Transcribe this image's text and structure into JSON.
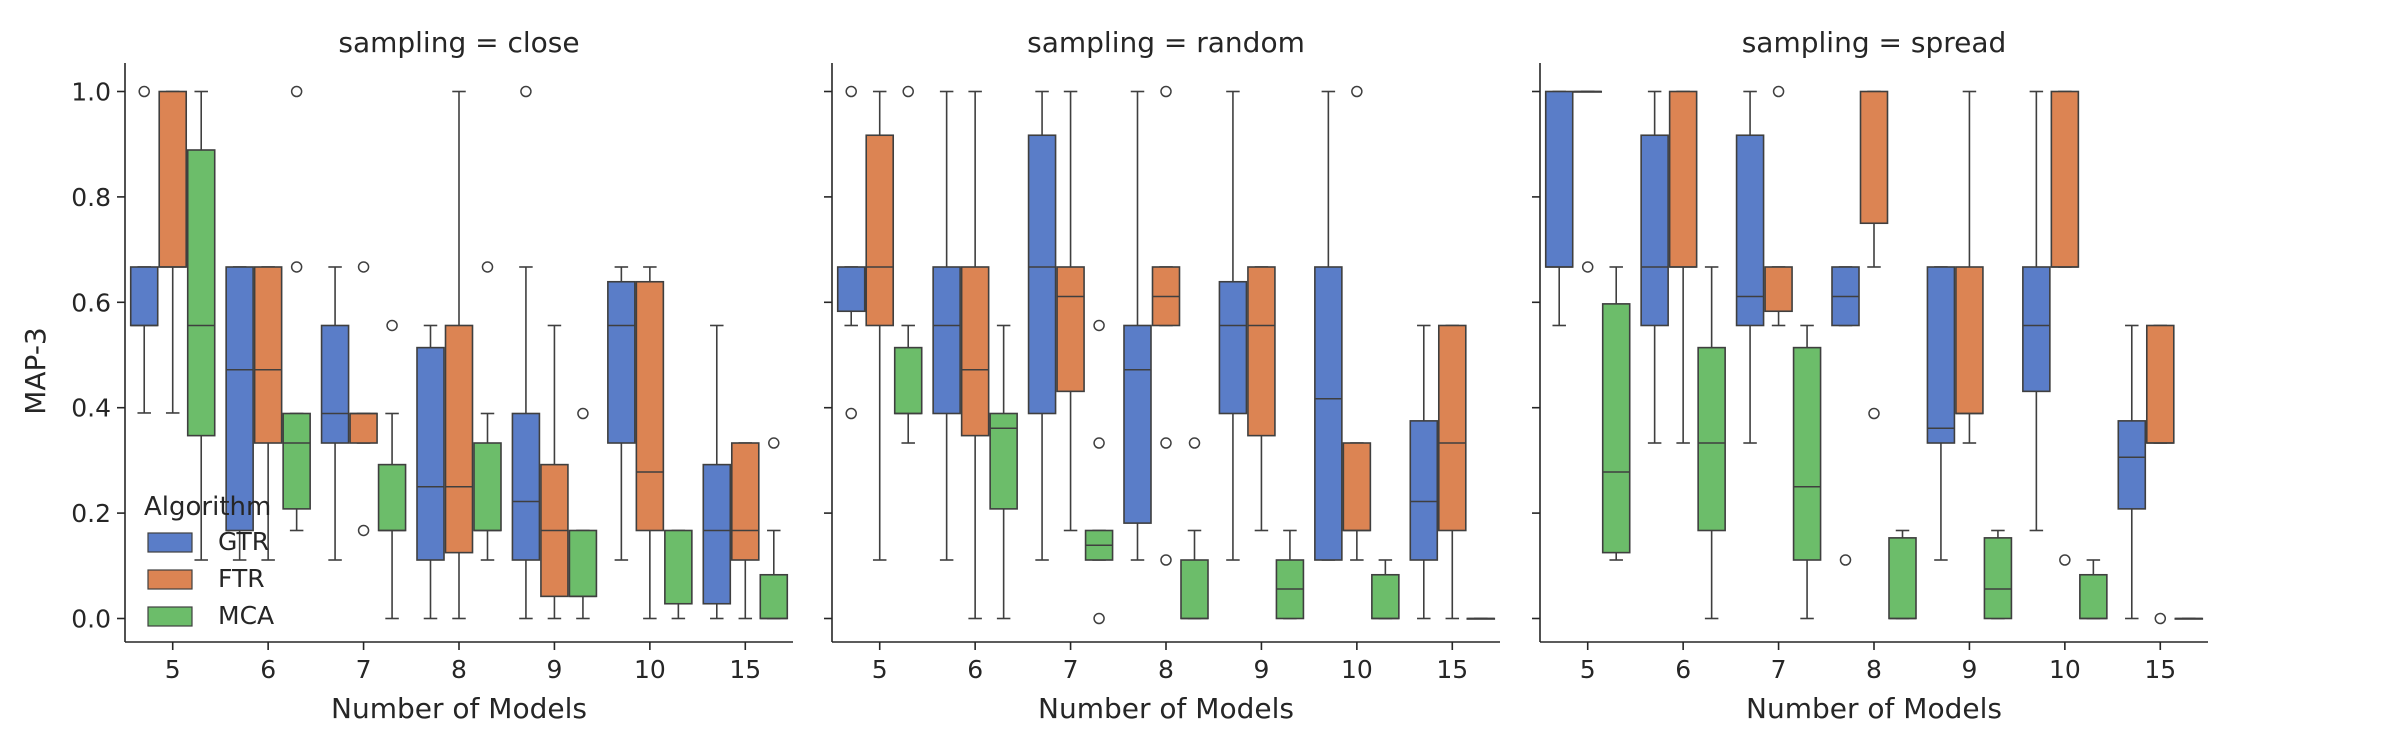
{
  "chart_data": {
    "type": "box",
    "ylabel": "MAP-3",
    "xlabel": "Number of Models",
    "ylim": [
      -0.05,
      1.05
    ],
    "yticks": [
      0.0,
      0.2,
      0.4,
      0.6,
      0.8,
      1.0
    ],
    "ytick_labels": [
      "0.0",
      "0.2",
      "0.4",
      "0.6",
      "0.8",
      "1.0"
    ],
    "categories": [
      "5",
      "6",
      "7",
      "8",
      "9",
      "10",
      "15"
    ],
    "series_names": [
      "GTR",
      "FTR",
      "MCA"
    ],
    "colors": {
      "GTR": "#5a7dc8",
      "FTR": "#dc8453",
      "MCA": "#6cbd6a"
    },
    "legend": {
      "title": "Algorithm",
      "placement": "lower-left of first panel"
    },
    "panels": [
      {
        "title": "sampling = close",
        "boxes": {
          "GTR": [
            {
              "whislo": 0.39,
              "q1": 0.556,
              "med": 0.556,
              "q3": 0.667,
              "whishi": 0.667,
              "fliers": [
                1.0
              ]
            },
            {
              "whislo": 0.111,
              "q1": 0.167,
              "med": 0.472,
              "q3": 0.667,
              "whishi": 0.667,
              "fliers": []
            },
            {
              "whislo": 0.111,
              "q1": 0.333,
              "med": 0.389,
              "q3": 0.556,
              "whishi": 0.667,
              "fliers": []
            },
            {
              "whislo": 0.0,
              "q1": 0.111,
              "med": 0.25,
              "q3": 0.514,
              "whishi": 0.556,
              "fliers": []
            },
            {
              "whislo": 0.0,
              "q1": 0.111,
              "med": 0.222,
              "q3": 0.389,
              "whishi": 0.667,
              "fliers": [
                1.0
              ]
            },
            {
              "whislo": 0.111,
              "q1": 0.333,
              "med": 0.556,
              "q3": 0.639,
              "whishi": 0.667,
              "fliers": []
            },
            {
              "whislo": 0.0,
              "q1": 0.028,
              "med": 0.167,
              "q3": 0.292,
              "whishi": 0.556,
              "fliers": []
            }
          ],
          "FTR": [
            {
              "whislo": 0.39,
              "q1": 0.667,
              "med": 0.667,
              "q3": 1.0,
              "whishi": 1.0,
              "fliers": []
            },
            {
              "whislo": 0.111,
              "q1": 0.333,
              "med": 0.472,
              "q3": 0.667,
              "whishi": 0.667,
              "fliers": []
            },
            {
              "whislo": 0.333,
              "q1": 0.333,
              "med": 0.389,
              "q3": 0.389,
              "whishi": 0.389,
              "fliers": [
                0.667,
                0.167
              ]
            },
            {
              "whislo": 0.0,
              "q1": 0.125,
              "med": 0.25,
              "q3": 0.556,
              "whishi": 1.0,
              "fliers": []
            },
            {
              "whislo": 0.0,
              "q1": 0.042,
              "med": 0.167,
              "q3": 0.292,
              "whishi": 0.556,
              "fliers": []
            },
            {
              "whislo": 0.0,
              "q1": 0.167,
              "med": 0.278,
              "q3": 0.639,
              "whishi": 0.667,
              "fliers": []
            },
            {
              "whislo": 0.0,
              "q1": 0.111,
              "med": 0.167,
              "q3": 0.333,
              "whishi": 0.333,
              "fliers": []
            }
          ],
          "MCA": [
            {
              "whislo": 0.111,
              "q1": 0.347,
              "med": 0.556,
              "q3": 0.889,
              "whishi": 1.0,
              "fliers": []
            },
            {
              "whislo": 0.167,
              "q1": 0.208,
              "med": 0.333,
              "q3": 0.389,
              "whishi": 0.389,
              "fliers": [
                1.0,
                0.667
              ]
            },
            {
              "whislo": 0.0,
              "q1": 0.167,
              "med": 0.167,
              "q3": 0.292,
              "whishi": 0.389,
              "fliers": [
                0.556
              ]
            },
            {
              "whislo": 0.111,
              "q1": 0.167,
              "med": 0.167,
              "q3": 0.333,
              "whishi": 0.389,
              "fliers": [
                0.667
              ]
            },
            {
              "whislo": 0.0,
              "q1": 0.042,
              "med": 0.042,
              "q3": 0.167,
              "whishi": 0.167,
              "fliers": [
                0.389
              ]
            },
            {
              "whislo": 0.0,
              "q1": 0.028,
              "med": 0.028,
              "q3": 0.167,
              "whishi": 0.167,
              "fliers": []
            },
            {
              "whislo": 0.0,
              "q1": 0.0,
              "med": 0.0,
              "q3": 0.083,
              "whishi": 0.167,
              "fliers": [
                0.333
              ]
            }
          ]
        }
      },
      {
        "title": "sampling = random",
        "boxes": {
          "GTR": [
            {
              "whislo": 0.556,
              "q1": 0.583,
              "med": 0.583,
              "q3": 0.667,
              "whishi": 0.667,
              "fliers": [
                1.0,
                0.389
              ]
            },
            {
              "whislo": 0.111,
              "q1": 0.389,
              "med": 0.556,
              "q3": 0.667,
              "whishi": 1.0,
              "fliers": []
            },
            {
              "whislo": 0.111,
              "q1": 0.389,
              "med": 0.667,
              "q3": 0.917,
              "whishi": 1.0,
              "fliers": []
            },
            {
              "whislo": 0.111,
              "q1": 0.181,
              "med": 0.472,
              "q3": 0.556,
              "whishi": 1.0,
              "fliers": []
            },
            {
              "whislo": 0.111,
              "q1": 0.389,
              "med": 0.556,
              "q3": 0.639,
              "whishi": 1.0,
              "fliers": []
            },
            {
              "whislo": 0.111,
              "q1": 0.111,
              "med": 0.417,
              "q3": 0.667,
              "whishi": 1.0,
              "fliers": []
            },
            {
              "whislo": 0.0,
              "q1": 0.111,
              "med": 0.222,
              "q3": 0.375,
              "whishi": 0.556,
              "fliers": []
            }
          ],
          "FTR": [
            {
              "whislo": 0.111,
              "q1": 0.556,
              "med": 0.667,
              "q3": 0.917,
              "whishi": 1.0,
              "fliers": []
            },
            {
              "whislo": 0.0,
              "q1": 0.347,
              "med": 0.472,
              "q3": 0.667,
              "whishi": 1.0,
              "fliers": []
            },
            {
              "whislo": 0.167,
              "q1": 0.431,
              "med": 0.611,
              "q3": 0.667,
              "whishi": 1.0,
              "fliers": []
            },
            {
              "whislo": 0.556,
              "q1": 0.556,
              "med": 0.611,
              "q3": 0.667,
              "whishi": 0.667,
              "fliers": [
                1.0,
                0.333,
                0.111
              ]
            },
            {
              "whislo": 0.167,
              "q1": 0.347,
              "med": 0.556,
              "q3": 0.667,
              "whishi": 0.667,
              "fliers": []
            },
            {
              "whislo": 0.111,
              "q1": 0.167,
              "med": 0.167,
              "q3": 0.333,
              "whishi": 0.333,
              "fliers": [
                1.0
              ]
            },
            {
              "whislo": 0.0,
              "q1": 0.167,
              "med": 0.333,
              "q3": 0.556,
              "whishi": 0.556,
              "fliers": []
            }
          ],
          "MCA": [
            {
              "whislo": 0.333,
              "q1": 0.389,
              "med": 0.389,
              "q3": 0.514,
              "whishi": 0.556,
              "fliers": [
                1.0
              ]
            },
            {
              "whislo": 0.0,
              "q1": 0.208,
              "med": 0.361,
              "q3": 0.389,
              "whishi": 0.556,
              "fliers": []
            },
            {
              "whislo": 0.111,
              "q1": 0.111,
              "med": 0.139,
              "q3": 0.167,
              "whishi": 0.167,
              "fliers": [
                0.556,
                0.333,
                0.0
              ]
            },
            {
              "whislo": 0.0,
              "q1": 0.0,
              "med": 0.0,
              "q3": 0.111,
              "whishi": 0.167,
              "fliers": [
                0.333
              ]
            },
            {
              "whislo": 0.0,
              "q1": 0.0,
              "med": 0.056,
              "q3": 0.111,
              "whishi": 0.167,
              "fliers": []
            },
            {
              "whislo": 0.0,
              "q1": 0.0,
              "med": 0.0,
              "q3": 0.083,
              "whishi": 0.111,
              "fliers": []
            },
            {
              "whislo": 0.0,
              "q1": 0.0,
              "med": 0.0,
              "q3": 0.0,
              "whishi": 0.0,
              "fliers": []
            }
          ]
        }
      },
      {
        "title": "sampling = spread",
        "boxes": {
          "GTR": [
            {
              "whislo": 0.556,
              "q1": 0.667,
              "med": 0.667,
              "q3": 1.0,
              "whishi": 1.0,
              "fliers": []
            },
            {
              "whislo": 0.333,
              "q1": 0.556,
              "med": 0.667,
              "q3": 0.917,
              "whishi": 1.0,
              "fliers": []
            },
            {
              "whislo": 0.333,
              "q1": 0.556,
              "med": 0.611,
              "q3": 0.917,
              "whishi": 1.0,
              "fliers": []
            },
            {
              "whislo": 0.556,
              "q1": 0.556,
              "med": 0.611,
              "q3": 0.667,
              "whishi": 0.667,
              "fliers": [
                0.111
              ]
            },
            {
              "whislo": 0.111,
              "q1": 0.333,
              "med": 0.361,
              "q3": 0.667,
              "whishi": 0.667,
              "fliers": []
            },
            {
              "whislo": 0.167,
              "q1": 0.431,
              "med": 0.556,
              "q3": 0.667,
              "whishi": 1.0,
              "fliers": []
            },
            {
              "whislo": 0.0,
              "q1": 0.208,
              "med": 0.306,
              "q3": 0.375,
              "whishi": 0.556,
              "fliers": []
            }
          ],
          "FTR": [
            {
              "whislo": 1.0,
              "q1": 1.0,
              "med": 1.0,
              "q3": 1.0,
              "whishi": 1.0,
              "fliers": [
                0.667
              ]
            },
            {
              "whislo": 0.333,
              "q1": 0.667,
              "med": 0.667,
              "q3": 1.0,
              "whishi": 1.0,
              "fliers": []
            },
            {
              "whislo": 0.556,
              "q1": 0.583,
              "med": 0.583,
              "q3": 0.667,
              "whishi": 0.667,
              "fliers": [
                1.0
              ]
            },
            {
              "whislo": 0.667,
              "q1": 0.75,
              "med": 0.75,
              "q3": 1.0,
              "whishi": 1.0,
              "fliers": [
                0.389
              ]
            },
            {
              "whislo": 0.333,
              "q1": 0.389,
              "med": 0.389,
              "q3": 0.667,
              "whishi": 1.0,
              "fliers": []
            },
            {
              "whislo": 0.667,
              "q1": 0.667,
              "med": 0.667,
              "q3": 1.0,
              "whishi": 1.0,
              "fliers": [
                0.111
              ]
            },
            {
              "whislo": 0.333,
              "q1": 0.333,
              "med": 0.333,
              "q3": 0.556,
              "whishi": 0.556,
              "fliers": [
                0.0
              ]
            }
          ],
          "MCA": [
            {
              "whislo": 0.111,
              "q1": 0.125,
              "med": 0.278,
              "q3": 0.597,
              "whishi": 0.667,
              "fliers": []
            },
            {
              "whislo": 0.0,
              "q1": 0.167,
              "med": 0.333,
              "q3": 0.514,
              "whishi": 0.667,
              "fliers": []
            },
            {
              "whislo": 0.0,
              "q1": 0.111,
              "med": 0.25,
              "q3": 0.514,
              "whishi": 0.556,
              "fliers": []
            },
            {
              "whislo": 0.0,
              "q1": 0.0,
              "med": 0.0,
              "q3": 0.153,
              "whishi": 0.167,
              "fliers": []
            },
            {
              "whislo": 0.0,
              "q1": 0.0,
              "med": 0.056,
              "q3": 0.153,
              "whishi": 0.167,
              "fliers": []
            },
            {
              "whislo": 0.0,
              "q1": 0.0,
              "med": 0.0,
              "q3": 0.083,
              "whishi": 0.111,
              "fliers": []
            },
            {
              "whislo": 0.0,
              "q1": 0.0,
              "med": 0.0,
              "q3": 0.0,
              "whishi": 0.0,
              "fliers": []
            }
          ]
        }
      }
    ]
  }
}
